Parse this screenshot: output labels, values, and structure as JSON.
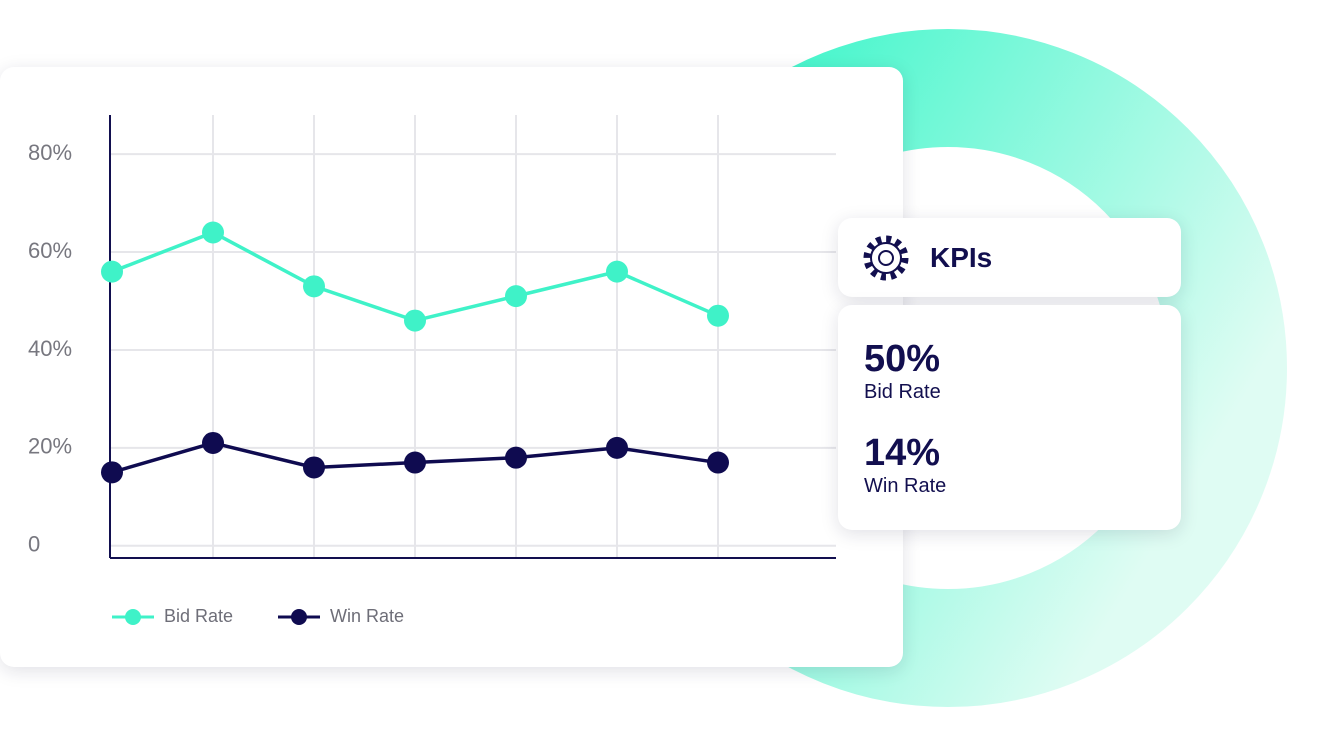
{
  "chart_data": {
    "type": "line",
    "categories": [
      null,
      null,
      null,
      null,
      null,
      null,
      null
    ],
    "series": [
      {
        "name": "Bid Rate",
        "color": "#3ff2c8",
        "values": [
          56,
          64,
          53,
          46,
          51,
          56,
          47
        ]
      },
      {
        "name": "Win Rate",
        "color": "#0f0b50",
        "values": [
          15,
          21,
          16,
          17,
          18,
          20,
          17
        ]
      }
    ],
    "ylim": [
      -2.5,
      88
    ],
    "yticks": [
      0,
      {
        "value": 20,
        "label": "20%"
      },
      {
        "value": 40,
        "label": "40%"
      },
      {
        "value": 60,
        "label": "60%"
      },
      {
        "value": 80,
        "label": "80%"
      }
    ],
    "grid": true
  },
  "kpi_panel": {
    "title": "KPIs",
    "items": [
      {
        "value": "50%",
        "label": "Bid Rate"
      },
      {
        "value": "14%",
        "label": "Win Rate"
      }
    ]
  }
}
